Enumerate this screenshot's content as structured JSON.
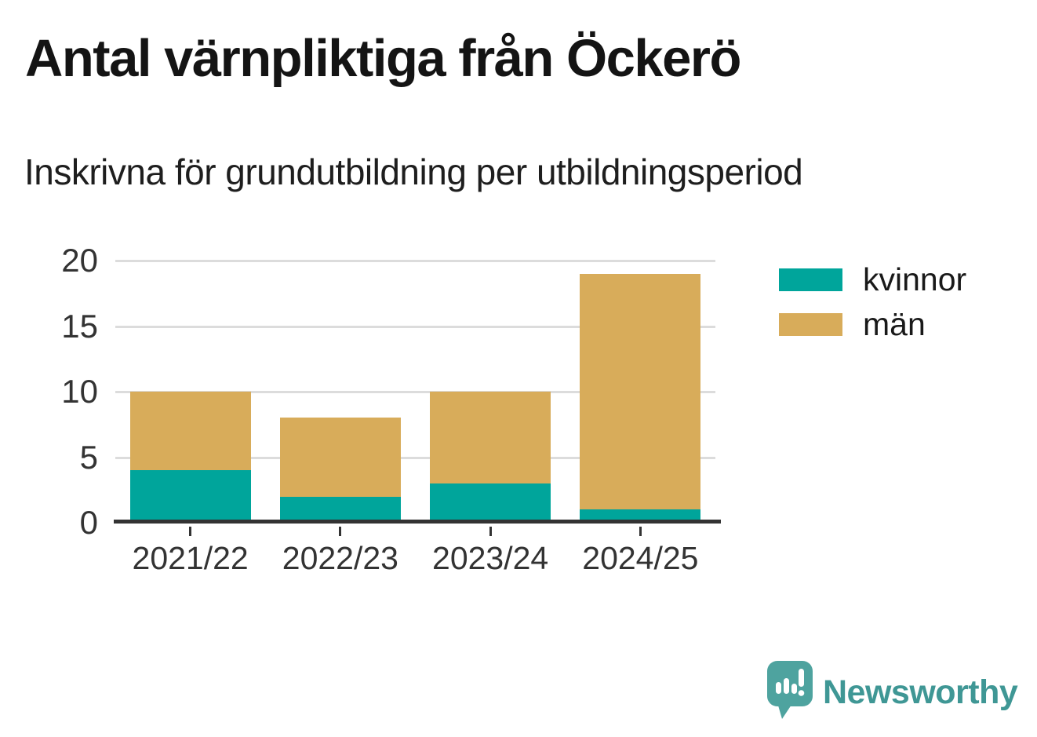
{
  "header": {
    "title": "Antal värnpliktiga från Öckerö",
    "subtitle": "Inskrivna för grundutbildning per utbildningsperiod"
  },
  "chart_data": {
    "type": "bar",
    "stacked": true,
    "title": "Antal värnpliktiga från Öckerö",
    "subtitle": "Inskrivna för grundutbildning per utbildningsperiod",
    "categories": [
      "2021/22",
      "2022/23",
      "2023/24",
      "2024/25"
    ],
    "series": [
      {
        "name": "kvinnor",
        "color": "#00A59B",
        "values": [
          4,
          2,
          3,
          1
        ]
      },
      {
        "name": "män",
        "color": "#D8AC5A",
        "values": [
          6,
          6,
          7,
          18
        ]
      }
    ],
    "stack_totals": [
      10,
      8,
      10,
      19
    ],
    "xlabel": "",
    "ylabel": "",
    "ylim": [
      0,
      20
    ],
    "yticks": [
      0,
      5,
      10,
      15,
      20
    ],
    "grid": true,
    "legend_position": "right"
  },
  "legend": {
    "items": [
      {
        "label": "kvinnor",
        "color": "#00A59B"
      },
      {
        "label": "män",
        "color": "#D8AC5A"
      }
    ]
  },
  "branding": {
    "name": "Newsworthy",
    "wordmark_color": "#3F9795",
    "bubble_color": "#4EA39F"
  },
  "colors": {
    "axis": "#333333",
    "grid": "#dcdcdc",
    "title_text": "#141414"
  }
}
